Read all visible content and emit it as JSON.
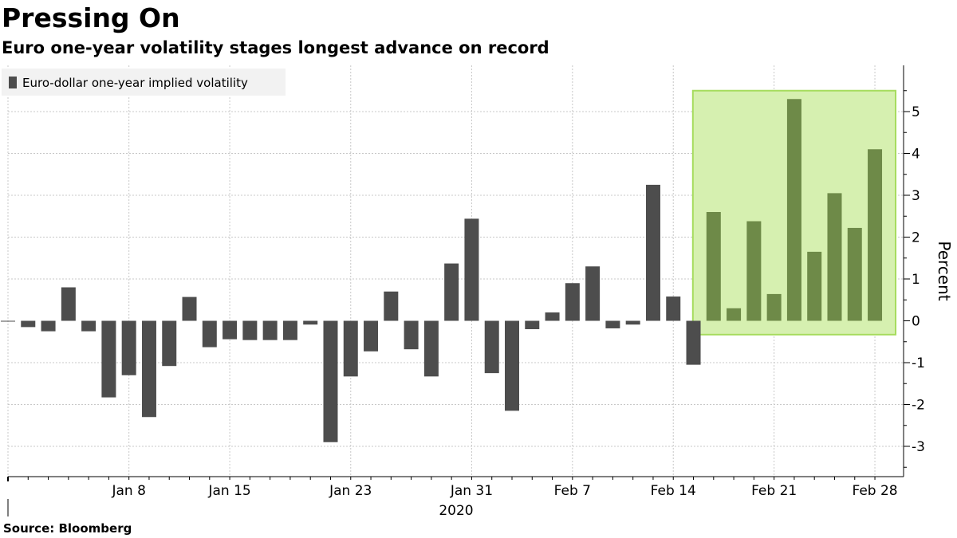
{
  "header": {
    "title": "Pressing On",
    "subtitle": "Euro one-year volatility stages longest advance on record"
  },
  "footer": {
    "source": "Source:  Bloomberg"
  },
  "colors": {
    "bar": "#4d4d4d",
    "bar_highlighted": "#6e8a48",
    "highlight_fill": "#d6f0b0",
    "highlight_stroke": "#a6dc5e",
    "grid": "#c8c8c8"
  },
  "chart_data": {
    "type": "bar",
    "title": "Pressing On",
    "subtitle": "Euro one-year volatility stages longest advance on record",
    "ylabel": "Percent",
    "xlabel": "",
    "year_label": "2020",
    "ylim": [
      -3.8,
      6.2
    ],
    "yticks": [
      -3,
      -2,
      -1,
      0,
      1,
      2,
      3,
      4,
      5
    ],
    "grid": true,
    "legend_position": "top-left",
    "series": [
      {
        "name": "Euro-dollar one-year implied volatility",
        "values": [
          -0.01,
          -0.15,
          -0.25,
          0.8,
          -0.25,
          -1.83,
          -1.3,
          -2.3,
          -1.08,
          0.57,
          -0.63,
          -0.44,
          -0.46,
          -0.46,
          -0.46,
          -0.09,
          -2.9,
          -1.33,
          -0.73,
          0.7,
          -0.68,
          -1.33,
          1.37,
          2.44,
          -1.25,
          -2.15,
          -0.2,
          0.2,
          0.9,
          1.3,
          -0.18,
          -0.09,
          3.25,
          0.58,
          -1.05,
          2.6,
          0.3,
          2.38,
          0.64,
          5.3,
          1.65,
          3.05,
          2.22,
          4.1
        ]
      }
    ],
    "x_tick_labels": [
      {
        "label": "Jan 8",
        "index": 6
      },
      {
        "label": "Jan 15",
        "index": 11
      },
      {
        "label": "Jan 23",
        "index": 17
      },
      {
        "label": "Jan 31",
        "index": 23
      },
      {
        "label": "Feb 7",
        "index": 28
      },
      {
        "label": "Feb 14",
        "index": 33
      },
      {
        "label": "Feb 21",
        "index": 38
      },
      {
        "label": "Feb 28",
        "index": 43
      }
    ],
    "x_gridline_indices": [
      0,
      6,
      11,
      17,
      23,
      28,
      33,
      38,
      43
    ],
    "highlight": {
      "start_index": 35,
      "end_index": 43,
      "y_from": -0.33,
      "y_to": 5.5
    }
  }
}
